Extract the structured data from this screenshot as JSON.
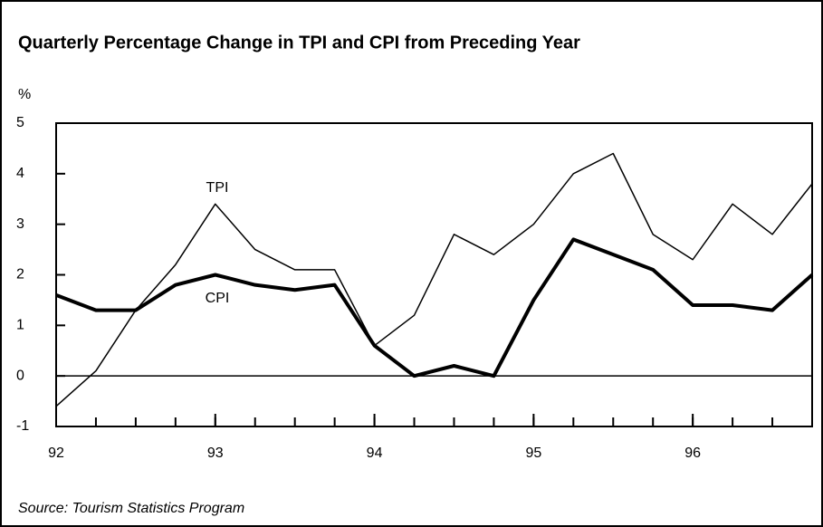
{
  "chart_data": {
    "type": "line",
    "title": "Quarterly Percentage Change in TPI and CPI from Preceding Year",
    "y_label": "%",
    "source": "Source: Tourism Statistics Program",
    "x": [
      92,
      92.25,
      92.5,
      92.75,
      93,
      93.25,
      93.5,
      93.75,
      94,
      94.25,
      94.5,
      94.75,
      95,
      95.25,
      95.5,
      95.75,
      96,
      96.25,
      96.5,
      96.75
    ],
    "xlim": [
      92,
      96.75
    ],
    "xticks": [
      92,
      93,
      94,
      95,
      96
    ],
    "ylim": [
      -1,
      5
    ],
    "yticks": [
      -1,
      0,
      1,
      2,
      3,
      4,
      5
    ],
    "series": [
      {
        "name": "TPI",
        "color": "#000000",
        "values": [
          -0.6,
          0.1,
          1.3,
          2.2,
          3.4,
          2.5,
          2.1,
          2.1,
          0.6,
          1.2,
          2.8,
          2.4,
          3.0,
          4.0,
          4.4,
          2.8,
          2.3,
          3.4,
          2.8,
          3.8
        ]
      },
      {
        "name": "CPI",
        "color": "#000000",
        "values": [
          1.6,
          1.3,
          1.3,
          1.8,
          2.0,
          1.8,
          1.7,
          1.8,
          0.6,
          0.0,
          0.2,
          0.0,
          1.5,
          2.7,
          2.4,
          2.1,
          1.4,
          1.4,
          1.3,
          2.0
        ]
      }
    ]
  }
}
